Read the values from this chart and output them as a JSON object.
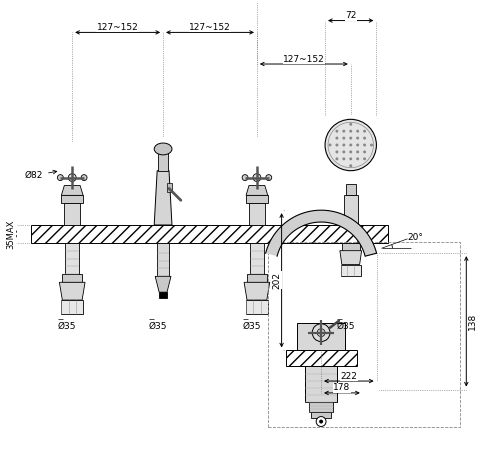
{
  "bg_color": "#ffffff",
  "line_color": "#000000",
  "fig_width": 5.0,
  "fig_height": 4.5,
  "dim_labels": {
    "top_span1": "127~152",
    "top_span2": "127~152",
    "shower_width": "72",
    "mid_span": "127~152",
    "left_height": "35MAX",
    "left_dia": "Ø82",
    "d35_labels": [
      "Ø35",
      "Ø35",
      "Ø35",
      "Ø35"
    ],
    "bottom_height": "202",
    "bottom_width1": "222",
    "bottom_width2": "178",
    "bottom_right_height": "138",
    "angle_label": "20°"
  }
}
